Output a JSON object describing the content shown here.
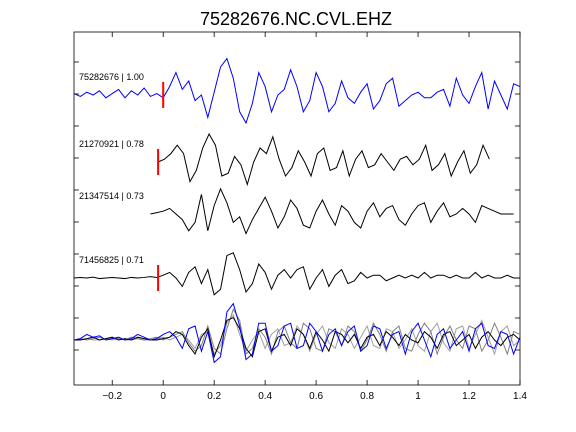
{
  "chart_data": {
    "type": "line",
    "title": "75282676.NC.CVL.EHZ",
    "xlabel": "",
    "ylabel": "",
    "xlim": [
      -0.35,
      1.4
    ],
    "x_ticks": [
      -0.2,
      0,
      0.2,
      0.4,
      0.6,
      0.8,
      1,
      1.2,
      1.4
    ],
    "x_tick_labels": [
      "−0.2",
      "0",
      "0.2",
      "0.4",
      "0.6",
      "0.8",
      "1",
      "1.2",
      "1.4"
    ],
    "grid": false,
    "legend": "none",
    "pick_color": "#ff0000",
    "overlay_colors": [
      "#000000",
      "#808080",
      "#a0a0a0"
    ],
    "traces": [
      {
        "label": "75282676 | 1.00",
        "color": "#0000ff",
        "pick_time": 0.0,
        "t0": -0.35,
        "dt": 0.025,
        "values": [
          0.05,
          -0.05,
          0.1,
          0.0,
          0.15,
          -0.1,
          0.05,
          0.2,
          -0.1,
          0.15,
          0.0,
          0.25,
          -0.05,
          0.05,
          -0.1,
          0.3,
          0.8,
          0.2,
          0.5,
          -0.2,
          0.0,
          -0.8,
          0.1,
          1.0,
          1.3,
          0.6,
          -0.6,
          -1.0,
          -0.3,
          0.8,
          0.3,
          -0.6,
          0.0,
          0.2,
          0.9,
          0.3,
          -0.6,
          -0.2,
          0.8,
          0.3,
          -0.6,
          -0.3,
          0.5,
          -0.1,
          -0.3,
          0.1,
          0.4,
          -0.5,
          -0.2,
          0.4,
          0.6,
          -0.4,
          -0.2,
          0.0,
          0.1,
          -0.1,
          -0.1,
          0.1,
          0.2,
          -0.4,
          0.6,
          0.0,
          -0.3,
          0.3,
          0.8,
          -0.5,
          0.5,
          0.0,
          -0.5,
          0.4,
          0.3,
          0.0
        ]
      },
      {
        "label": "21270921 | 0.78",
        "color": "#000000",
        "pick_time": -0.02,
        "t0": -0.02,
        "dt": 0.025,
        "values": [
          0.0,
          0.1,
          0.3,
          0.6,
          0.3,
          -0.7,
          -0.3,
          0.5,
          1.0,
          0.6,
          -0.5,
          -0.4,
          0.2,
          -0.1,
          -0.8,
          0.0,
          0.5,
          0.3,
          0.9,
          0.1,
          -0.5,
          -0.2,
          0.4,
          0.0,
          -0.5,
          0.3,
          0.5,
          -0.3,
          -0.2,
          0.4,
          -0.5,
          0.1,
          0.4,
          -0.2,
          -0.1,
          0.3,
          0.0,
          -0.3,
          0.1,
          0.2,
          -0.1,
          0.1,
          0.6,
          -0.3,
          -0.1,
          0.3,
          -0.5,
          0.0,
          0.4,
          -0.4,
          -0.1,
          0.6,
          0.1
        ]
      },
      {
        "label": "21347514 | 0.73",
        "color": "#000000",
        "pick_time": null,
        "t0": -0.05,
        "dt": 0.025,
        "values": [
          0.0,
          0.05,
          0.1,
          0.2,
          0.0,
          -0.2,
          -0.6,
          -0.3,
          0.7,
          -0.6,
          0.3,
          0.9,
          0.4,
          -0.3,
          -0.1,
          -0.7,
          -0.2,
          0.2,
          0.6,
          0.1,
          -0.5,
          -0.1,
          0.5,
          0.2,
          -0.4,
          -0.5,
          0.1,
          0.5,
          0.0,
          -0.4,
          0.3,
          0.1,
          -0.3,
          -0.5,
          0.1,
          0.4,
          -0.1,
          0.2,
          0.3,
          -0.2,
          -0.4,
          0.0,
          0.3,
          0.4,
          -0.3,
          0.1,
          0.4,
          -0.1,
          0.0,
          0.2,
          0.0,
          -0.3,
          0.3,
          0.2,
          0.1,
          0.0,
          0.0,
          0.0
        ]
      },
      {
        "label": "71456825 | 0.71",
        "color": "#000000",
        "pick_time": -0.02,
        "t0": -0.35,
        "dt": 0.025,
        "values": [
          0.0,
          0.02,
          0.0,
          0.03,
          -0.02,
          0.0,
          0.02,
          0.0,
          -0.02,
          0.02,
          0.0,
          0.02,
          0.05,
          0.02,
          0.1,
          0.2,
          0.0,
          -0.3,
          0.2,
          0.4,
          -0.2,
          0.3,
          -0.6,
          -0.4,
          0.8,
          0.9,
          0.3,
          -0.5,
          -0.2,
          0.5,
          0.2,
          -0.4,
          0.1,
          0.3,
          0.0,
          0.3,
          0.4,
          -0.4,
          0.0,
          0.3,
          -0.3,
          0.1,
          0.3,
          -0.2,
          -0.1,
          0.2,
          0.0,
          0.1,
          0.1,
          -0.1,
          0.0,
          0.1,
          0.0,
          0.1,
          0.0,
          0.2,
          0.0,
          0.1,
          0.1,
          0.0,
          0.1,
          0.0,
          0.0,
          0.2,
          0.0,
          0.1,
          0.0,
          0.0,
          0.1,
          0.0,
          0.0,
          0.0
        ]
      }
    ],
    "overlay": {
      "description_free": true,
      "t0": -0.35,
      "dt": 0.025,
      "series": [
        {
          "color": "#0000ff",
          "values": [
            0.0,
            0.05,
            0.2,
            0.1,
            0.15,
            0.0,
            0.05,
            0.1,
            0.0,
            0.05,
            0.2,
            0.1,
            0.0,
            0.05,
            0.2,
            0.3,
            0.1,
            -0.3,
            0.4,
            0.5,
            -0.4,
            0.3,
            -0.8,
            -0.6,
            1.0,
            1.3,
            0.5,
            -0.7,
            -0.5,
            0.6,
            0.6,
            -0.4,
            -0.2,
            0.5,
            0.6,
            -0.3,
            -0.2,
            0.6,
            0.3,
            -0.4,
            0.2,
            0.4,
            -0.2,
            0.3,
            0.5,
            -0.4,
            -0.2,
            0.5,
            0.4,
            -0.3,
            0.2,
            0.3,
            -0.5,
            0.3,
            0.6,
            0.0,
            -0.6,
            0.2,
            0.4,
            -0.3,
            0.0,
            0.3,
            -0.4,
            0.4,
            0.6,
            -0.2,
            -0.3,
            0.3,
            0.2,
            -0.5,
            0.1,
            0.0
          ]
        },
        {
          "color": "#000000",
          "values": [
            0.0,
            0.0,
            0.05,
            0.1,
            0.0,
            0.05,
            0.1,
            0.0,
            0.05,
            0.0,
            0.1,
            0.05,
            0.0,
            0.0,
            0.05,
            0.1,
            0.3,
            0.2,
            -0.2,
            -0.5,
            0.1,
            0.4,
            -0.6,
            0.0,
            0.7,
            0.8,
            0.4,
            -0.3,
            -0.6,
            0.3,
            0.4,
            -0.4,
            0.1,
            0.2,
            -0.2,
            0.4,
            0.2,
            -0.3,
            0.3,
            0.0,
            -0.4,
            0.3,
            0.2,
            -0.1,
            0.2,
            -0.3,
            0.1,
            0.2,
            -0.2,
            0.3,
            0.1,
            -0.2,
            0.2,
            0.0,
            -0.1,
            0.3,
            0.1,
            -0.3,
            0.2,
            0.3,
            -0.2,
            0.0,
            0.2,
            -0.3,
            0.1,
            0.3,
            0.0,
            -0.2,
            0.1,
            0.2,
            0.0,
            0.0
          ]
        },
        {
          "color": "#808080",
          "values": [
            0.0,
            0.05,
            0.0,
            0.05,
            0.1,
            0.0,
            0.05,
            0.05,
            0.0,
            0.1,
            0.05,
            0.0,
            0.05,
            0.1,
            0.0,
            0.1,
            0.2,
            0.3,
            -0.1,
            -0.4,
            -0.2,
            0.5,
            -0.3,
            -0.5,
            0.4,
            1.1,
            0.7,
            -0.5,
            -0.3,
            0.4,
            0.1,
            -0.5,
            0.3,
            0.5,
            -0.1,
            -0.3,
            0.6,
            0.4,
            -0.3,
            -0.4,
            0.4,
            0.3,
            -0.2,
            0.5,
            0.3,
            -0.4,
            0.0,
            0.6,
            0.2,
            -0.4,
            0.3,
            0.5,
            -0.3,
            -0.4,
            0.2,
            0.6,
            0.3,
            -0.5,
            0.1,
            0.5,
            0.0,
            -0.3,
            0.5,
            0.4,
            -0.4,
            0.0,
            0.6,
            0.1,
            -0.5,
            0.3,
            0.2,
            0.0
          ]
        },
        {
          "color": "#a0a0a0",
          "values": [
            0.0,
            0.0,
            0.05,
            0.0,
            0.0,
            0.05,
            0.0,
            0.05,
            0.0,
            0.0,
            0.05,
            0.0,
            0.0,
            0.05,
            0.1,
            0.0,
            0.1,
            0.2,
            0.0,
            -0.3,
            0.2,
            0.3,
            -0.5,
            -0.2,
            0.6,
            0.9,
            0.2,
            -0.4,
            0.0,
            0.3,
            -0.3,
            0.2,
            0.4,
            -0.2,
            -0.1,
            0.5,
            0.2,
            -0.4,
            0.2,
            0.5,
            -0.1,
            -0.3,
            0.4,
            0.2,
            -0.3,
            0.1,
            0.5,
            -0.2,
            -0.3,
            0.4,
            0.3,
            -0.3,
            0.0,
            0.4,
            -0.2,
            -0.4,
            0.3,
            0.6,
            -0.1,
            -0.4,
            0.4,
            0.5,
            -0.3,
            0.2,
            0.7,
            0.1,
            -0.5,
            0.3,
            0.5,
            -0.2,
            0.0,
            0.0
          ]
        }
      ]
    }
  }
}
